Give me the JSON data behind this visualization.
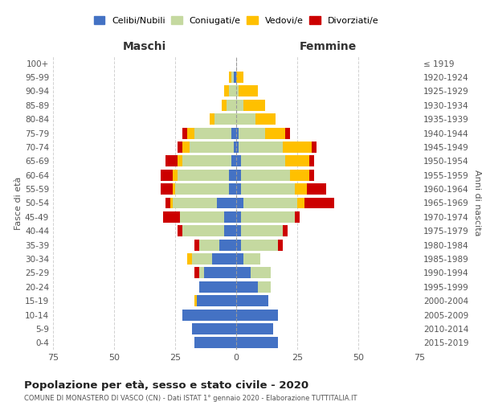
{
  "age_groups": [
    "0-4",
    "5-9",
    "10-14",
    "15-19",
    "20-24",
    "25-29",
    "30-34",
    "35-39",
    "40-44",
    "45-49",
    "50-54",
    "55-59",
    "60-64",
    "65-69",
    "70-74",
    "75-79",
    "80-84",
    "85-89",
    "90-94",
    "95-99",
    "100+"
  ],
  "birth_years": [
    "2015-2019",
    "2010-2014",
    "2005-2009",
    "2000-2004",
    "1995-1999",
    "1990-1994",
    "1985-1989",
    "1980-1984",
    "1975-1979",
    "1970-1974",
    "1965-1969",
    "1960-1964",
    "1955-1959",
    "1950-1954",
    "1945-1949",
    "1940-1944",
    "1935-1939",
    "1930-1934",
    "1925-1929",
    "1920-1924",
    "≤ 1919"
  ],
  "males": {
    "celibi": [
      17,
      18,
      22,
      16,
      15,
      13,
      10,
      7,
      5,
      5,
      8,
      3,
      3,
      2,
      1,
      2,
      0,
      0,
      0,
      1,
      0
    ],
    "coniugati": [
      0,
      0,
      0,
      0,
      0,
      2,
      8,
      8,
      17,
      18,
      18,
      22,
      21,
      20,
      18,
      15,
      9,
      4,
      3,
      1,
      0
    ],
    "vedovi": [
      0,
      0,
      0,
      1,
      0,
      0,
      2,
      0,
      0,
      0,
      1,
      1,
      2,
      2,
      3,
      3,
      2,
      2,
      2,
      1,
      0
    ],
    "divorziati": [
      0,
      0,
      0,
      0,
      0,
      2,
      0,
      2,
      2,
      7,
      2,
      5,
      5,
      5,
      2,
      2,
      0,
      0,
      0,
      0,
      0
    ]
  },
  "females": {
    "nubili": [
      17,
      15,
      17,
      13,
      9,
      6,
      3,
      2,
      2,
      2,
      3,
      2,
      2,
      2,
      1,
      1,
      0,
      0,
      0,
      0,
      0
    ],
    "coniugate": [
      0,
      0,
      0,
      0,
      5,
      8,
      7,
      15,
      17,
      22,
      22,
      22,
      20,
      18,
      18,
      11,
      8,
      3,
      1,
      0,
      0
    ],
    "vedove": [
      0,
      0,
      0,
      0,
      0,
      0,
      0,
      0,
      0,
      0,
      3,
      5,
      8,
      10,
      12,
      8,
      8,
      9,
      8,
      3,
      0
    ],
    "divorziate": [
      0,
      0,
      0,
      0,
      0,
      0,
      0,
      2,
      2,
      2,
      12,
      8,
      2,
      2,
      2,
      2,
      0,
      0,
      0,
      0,
      0
    ]
  },
  "colors": {
    "celibi": "#4472c4",
    "coniugati": "#c5d9a0",
    "vedovi": "#ffc000",
    "divorziati": "#cc0000"
  },
  "title": "Popolazione per età, sesso e stato civile - 2020",
  "subtitle": "COMUNE DI MONASTERO DI VASCO (CN) - Dati ISTAT 1° gennaio 2020 - Elaborazione TUTTITALIA.IT",
  "xlabel_left": "Maschi",
  "xlabel_right": "Femmine",
  "ylabel_left": "Fasce di età",
  "ylabel_right": "Anni di nascita",
  "xlim": 75,
  "bg_color": "#ffffff",
  "grid_color": "#cccccc"
}
